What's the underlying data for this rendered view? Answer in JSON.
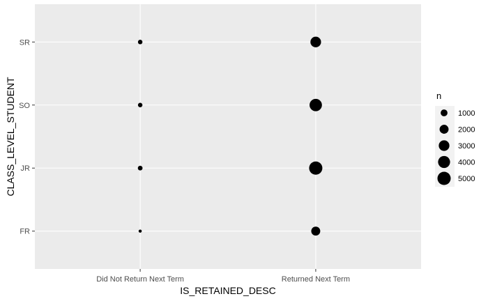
{
  "chart_data": {
    "type": "scatter",
    "xlabel": "IS_RETAINED_DESC",
    "ylabel": "CLASS_LEVEL_STUDENT",
    "x_categories": [
      "Did Not Return Next Term",
      "Returned Next Term"
    ],
    "y_categories": [
      "FR",
      "JR",
      "SO",
      "SR"
    ],
    "size_variable": "n",
    "points": [
      {
        "x": "Did Not Return Next Term",
        "y": "FR",
        "n": 80
      },
      {
        "x": "Did Not Return Next Term",
        "y": "JR",
        "n": 350
      },
      {
        "x": "Did Not Return Next Term",
        "y": "SO",
        "n": 300
      },
      {
        "x": "Did Not Return Next Term",
        "y": "SR",
        "n": 300
      },
      {
        "x": "Returned Next Term",
        "y": "FR",
        "n": 2000
      },
      {
        "x": "Returned Next Term",
        "y": "JR",
        "n": 5000
      },
      {
        "x": "Returned Next Term",
        "y": "SO",
        "n": 4300
      },
      {
        "x": "Returned Next Term",
        "y": "SR",
        "n": 3000
      }
    ],
    "legend": {
      "title": "n",
      "position": "right",
      "breaks": [
        1000,
        2000,
        3000,
        4000,
        5000
      ]
    },
    "grid": true,
    "panel_background": "#ebebeb",
    "grid_color": "#ffffff",
    "point_color": "#000000",
    "tick_label_color": "#4d4d4d",
    "axis_title_color": "#000000"
  }
}
